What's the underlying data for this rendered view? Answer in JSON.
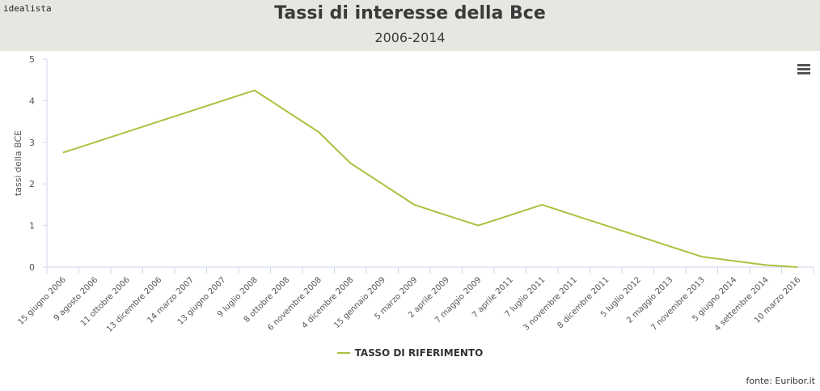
{
  "brand": "idealista",
  "source": "fonte: Euribor.it",
  "colors": {
    "series": "#a9c23f",
    "header_bg": "#e7e7e1",
    "axis": "#ccd6eb",
    "text": "#3a3a3a"
  },
  "menu_icon": "hamburger-menu-icon",
  "chart_data": {
    "type": "line",
    "title": "Tassi di interesse della Bce",
    "subtitle": "2006-2014",
    "ylabel": "tassi della BCE",
    "xlabel": "",
    "ylim": [
      0,
      5
    ],
    "yticks": [
      0,
      1,
      2,
      3,
      4,
      5
    ],
    "grid": false,
    "legend_position": "bottom-center",
    "categories": [
      "15 giugno 2006",
      "9 agosto 2006",
      "11 ottobre 2006",
      "13 dicembre 2006",
      "14 marzo 2007",
      "13 giugno 2007",
      "9 luglio 2008",
      "8 ottobre 2008",
      "6 novembre 2008",
      "4 dicembre 2008",
      "15 gennaio 2009",
      "5 marzo 2009",
      "2 aprile 2009",
      "7 maggio 2009",
      "7 aprile 2011",
      "7 luglio 2011",
      "3 novembre 2011",
      "8 dicembre 2011",
      "5 luglio 2012",
      "2 maggio 2013",
      "7 novembre 2013",
      "5 giugno 2014",
      "4 settembre 2014",
      "10 marzo 2016"
    ],
    "series": [
      {
        "name": "TASSO DI RIFERIMENTO",
        "values": [
          2.75,
          3.0,
          3.25,
          3.5,
          3.75,
          4.0,
          4.25,
          3.75,
          3.25,
          2.5,
          2.0,
          1.5,
          1.25,
          1.0,
          1.25,
          1.5,
          1.25,
          1.0,
          0.75,
          0.5,
          0.25,
          0.15,
          0.05,
          0.0
        ]
      }
    ]
  }
}
